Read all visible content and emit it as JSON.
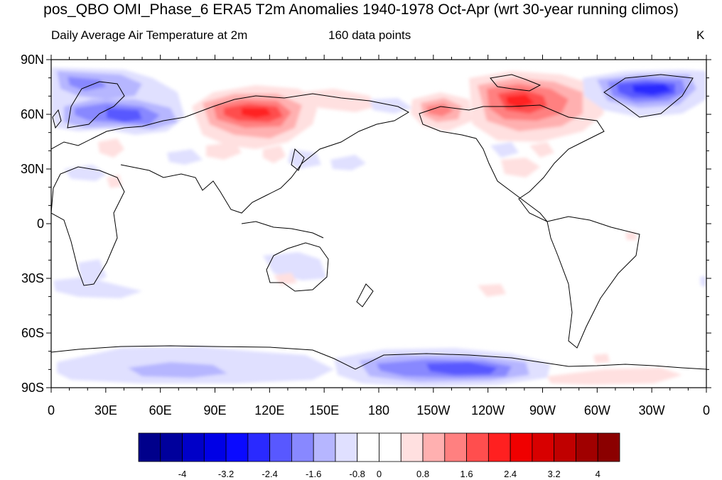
{
  "title": "pos_QBO OMI_Phase_6 ERA5 T2m Anomalies 1940-1978 Oct-Apr (wrt 30-year running climos)",
  "subtitle_left": "Daily Average Air Temperature at 2m",
  "subtitle_center": "160 data points",
  "units": "K",
  "map": {
    "projection": "cylindrical equidistant",
    "lon_range": [
      0,
      360
    ],
    "lat_range": [
      -90,
      90
    ],
    "lat_labels": [
      "90N",
      "60N",
      "30N",
      "0",
      "30S",
      "60S",
      "90S"
    ],
    "lon_labels": [
      "0",
      "30E",
      "60E",
      "90E",
      "120E",
      "150E",
      "180",
      "150W",
      "120W",
      "90W",
      "60W",
      "30W",
      "0"
    ]
  },
  "colorbar": {
    "colors": [
      "#00008b",
      "#00009c",
      "#0000c8",
      "#0000e6",
      "#0a0aff",
      "#2a2aff",
      "#5858ff",
      "#8888ff",
      "#b6b6ff",
      "#e0e0ff",
      "#ffffff",
      "#ffffff",
      "#ffe0e0",
      "#ffb0b0",
      "#ff8080",
      "#ff4e4e",
      "#ff2020",
      "#f00000",
      "#d80000",
      "#c00000",
      "#a00000",
      "#8b0000"
    ],
    "labels": [
      {
        "text": "-4",
        "boundary": 2
      },
      {
        "text": "-3.2",
        "boundary": 4
      },
      {
        "text": "-2.4",
        "boundary": 6
      },
      {
        "text": "-1.6",
        "boundary": 8
      },
      {
        "text": "-0.8",
        "boundary": 10
      },
      {
        "text": "0",
        "boundary": 11
      },
      {
        "text": "0.8",
        "boundary": 13
      },
      {
        "text": "1.6",
        "boundary": 15
      },
      {
        "text": "2.4",
        "boundary": 17
      },
      {
        "text": "3.2",
        "boundary": 19
      },
      {
        "text": "4",
        "boundary": 21
      }
    ]
  },
  "anomaly_regions": [
    {
      "name": "north-atlantic-europe-cold",
      "lon": 30,
      "lat": 72,
      "value": -1.4
    },
    {
      "name": "western-russia-cold",
      "lon": 45,
      "lat": 58,
      "value": -2.8
    },
    {
      "name": "siberia-warm",
      "lon": 105,
      "lat": 62,
      "value": 2.6
    },
    {
      "name": "alaska-warm",
      "lon": 212,
      "lat": 62,
      "value": 1.8
    },
    {
      "name": "northern-canada-warm",
      "lon": 255,
      "lat": 68,
      "value": 3.0
    },
    {
      "name": "greenland-cold",
      "lon": 325,
      "lat": 72,
      "value": -3.4
    },
    {
      "name": "antarctica-cold",
      "lon": 240,
      "lat": -80,
      "value": -2.4
    },
    {
      "name": "weddell-sea-warm",
      "lon": 330,
      "lat": -82,
      "value": 0.6
    }
  ]
}
